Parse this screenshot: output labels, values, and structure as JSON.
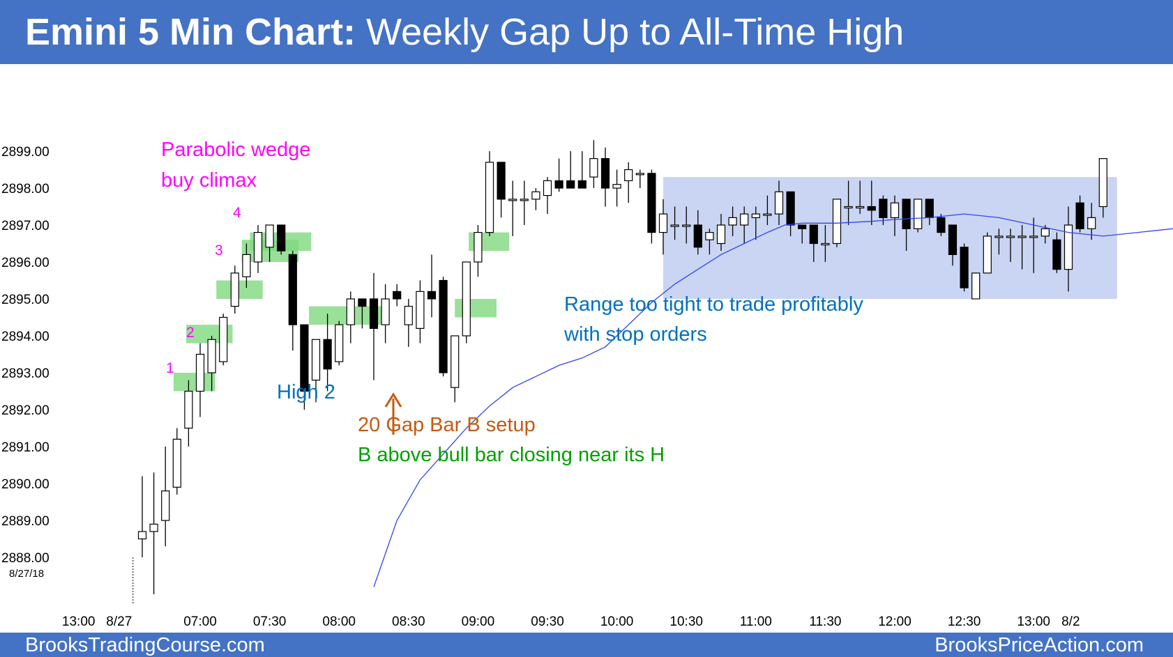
{
  "header": {
    "title_bold": "Emini 5 Min Chart:",
    "title_rest": " Weekly Gap Up to All-Time High",
    "bg_color": "#4472c4"
  },
  "footer": {
    "left": "BrooksTradingCourse.com",
    "right": "BrooksPriceAction.com"
  },
  "chart_data": {
    "type": "candlestick",
    "date_label": "8/27/18",
    "ylim": [
      2887.0,
      2899.5
    ],
    "y_ticks": [
      2899.0,
      2898.0,
      2897.0,
      2896.0,
      2895.0,
      2894.0,
      2893.0,
      2892.0,
      2891.0,
      2890.0,
      2889.0,
      2888.0
    ],
    "y_tick_labels": [
      "2899.00",
      "2898.00",
      "2897.00",
      "2896.00",
      "2895.00",
      "2894.00",
      "2893.00",
      "2892.00",
      "2891.00",
      "2890.00",
      "2889.00",
      "2888.00"
    ],
    "x_tick_labels": [
      {
        "bar": -5.5,
        "label": "13:00"
      },
      {
        "bar": -2.0,
        "label": "8/27"
      },
      {
        "bar": 5,
        "label": "07:00"
      },
      {
        "bar": 11,
        "label": "07:30"
      },
      {
        "bar": 17,
        "label": "08:00"
      },
      {
        "bar": 23,
        "label": "08:30"
      },
      {
        "bar": 29,
        "label": "09:00"
      },
      {
        "bar": 35,
        "label": "09:30"
      },
      {
        "bar": 41,
        "label": "10:00"
      },
      {
        "bar": 47,
        "label": "10:30"
      },
      {
        "bar": 53,
        "label": "11:00"
      },
      {
        "bar": 59,
        "label": "11:30"
      },
      {
        "bar": 65,
        "label": "12:00"
      },
      {
        "bar": 71,
        "label": "12:30"
      },
      {
        "bar": 77,
        "label": "13:00"
      },
      {
        "bar": 80.2,
        "label": "8/2"
      }
    ],
    "bars": [
      {
        "o": 2888.5,
        "h": 2890.2,
        "l": 2888.0,
        "c": 2888.7
      },
      {
        "o": 2888.7,
        "h": 2890.3,
        "l": 2887.0,
        "c": 2888.9
      },
      {
        "o": 2889.0,
        "h": 2891.0,
        "l": 2888.3,
        "c": 2889.8
      },
      {
        "o": 2889.9,
        "h": 2891.5,
        "l": 2889.7,
        "c": 2891.2
      },
      {
        "o": 2891.5,
        "h": 2892.8,
        "l": 2891.0,
        "c": 2892.5
      },
      {
        "o": 2892.5,
        "h": 2893.8,
        "l": 2891.8,
        "c": 2893.5
      },
      {
        "o": 2893.0,
        "h": 2894.0,
        "l": 2892.5,
        "c": 2893.9
      },
      {
        "o": 2893.3,
        "h": 2894.6,
        "l": 2893.2,
        "c": 2894.5
      },
      {
        "o": 2894.8,
        "h": 2895.9,
        "l": 2894.6,
        "c": 2895.7
      },
      {
        "o": 2895.6,
        "h": 2896.5,
        "l": 2895.3,
        "c": 2896.2
      },
      {
        "o": 2896.0,
        "h": 2897.0,
        "l": 2895.7,
        "c": 2896.8
      },
      {
        "o": 2896.4,
        "h": 2897.0,
        "l": 2896.0,
        "c": 2897.0
      },
      {
        "o": 2897.0,
        "h": 2897.0,
        "l": 2896.2,
        "c": 2896.3
      },
      {
        "o": 2896.2,
        "h": 2896.3,
        "l": 2893.6,
        "c": 2894.3
      },
      {
        "o": 2894.3,
        "h": 2894.3,
        "l": 2892.0,
        "c": 2892.5
      },
      {
        "o": 2892.8,
        "h": 2893.9,
        "l": 2892.2,
        "c": 2893.9
      },
      {
        "o": 2893.9,
        "h": 2894.6,
        "l": 2892.5,
        "c": 2893.1
      },
      {
        "o": 2893.3,
        "h": 2894.4,
        "l": 2893.2,
        "c": 2894.3
      },
      {
        "o": 2894.3,
        "h": 2895.2,
        "l": 2893.8,
        "c": 2895.0
      },
      {
        "o": 2895.0,
        "h": 2895.0,
        "l": 2894.2,
        "c": 2894.8
      },
      {
        "o": 2895.0,
        "h": 2895.7,
        "l": 2892.8,
        "c": 2894.2
      },
      {
        "o": 2894.3,
        "h": 2895.4,
        "l": 2893.8,
        "c": 2895.0
      },
      {
        "o": 2895.2,
        "h": 2895.4,
        "l": 2894.8,
        "c": 2895.0
      },
      {
        "o": 2894.3,
        "h": 2895.0,
        "l": 2893.7,
        "c": 2894.8
      },
      {
        "o": 2894.2,
        "h": 2895.5,
        "l": 2893.8,
        "c": 2895.2
      },
      {
        "o": 2895.2,
        "h": 2896.2,
        "l": 2894.5,
        "c": 2895.0
      },
      {
        "o": 2895.5,
        "h": 2895.6,
        "l": 2892.9,
        "c": 2893.0
      },
      {
        "o": 2892.6,
        "h": 2894.0,
        "l": 2892.2,
        "c": 2894.0
      },
      {
        "o": 2894.0,
        "h": 2896.0,
        "l": 2893.8,
        "c": 2896.0
      },
      {
        "o": 2896.0,
        "h": 2897.0,
        "l": 2895.6,
        "c": 2896.8
      },
      {
        "o": 2896.8,
        "h": 2899.0,
        "l": 2896.7,
        "c": 2898.7
      },
      {
        "o": 2898.7,
        "h": 2898.7,
        "l": 2897.2,
        "c": 2897.7
      },
      {
        "o": 2897.7,
        "h": 2898.2,
        "l": 2896.7,
        "c": 2897.7
      },
      {
        "o": 2897.7,
        "h": 2898.2,
        "l": 2897.0,
        "c": 2897.7
      },
      {
        "o": 2897.7,
        "h": 2898.0,
        "l": 2897.4,
        "c": 2897.9
      },
      {
        "o": 2897.8,
        "h": 2898.3,
        "l": 2897.3,
        "c": 2898.2
      },
      {
        "o": 2898.2,
        "h": 2898.8,
        "l": 2897.9,
        "c": 2898.0
      },
      {
        "o": 2898.2,
        "h": 2899.0,
        "l": 2898.0,
        "c": 2898.0
      },
      {
        "o": 2898.2,
        "h": 2899.0,
        "l": 2898.0,
        "c": 2898.0
      },
      {
        "o": 2898.3,
        "h": 2899.3,
        "l": 2898.0,
        "c": 2898.8
      },
      {
        "o": 2898.8,
        "h": 2899.1,
        "l": 2897.5,
        "c": 2898.0
      },
      {
        "o": 2898.0,
        "h": 2898.5,
        "l": 2897.5,
        "c": 2898.1
      },
      {
        "o": 2898.2,
        "h": 2898.7,
        "l": 2897.6,
        "c": 2898.5
      },
      {
        "o": 2898.4,
        "h": 2898.5,
        "l": 2898.0,
        "c": 2898.4
      },
      {
        "o": 2898.4,
        "h": 2898.5,
        "l": 2896.5,
        "c": 2896.8
      },
      {
        "o": 2896.8,
        "h": 2897.7,
        "l": 2896.2,
        "c": 2897.3
      },
      {
        "o": 2897.0,
        "h": 2897.5,
        "l": 2896.6,
        "c": 2897.0
      },
      {
        "o": 2897.0,
        "h": 2897.5,
        "l": 2896.5,
        "c": 2897.0
      },
      {
        "o": 2897.0,
        "h": 2897.4,
        "l": 2896.2,
        "c": 2896.4
      },
      {
        "o": 2896.6,
        "h": 2896.9,
        "l": 2896.2,
        "c": 2896.8
      },
      {
        "o": 2896.5,
        "h": 2897.3,
        "l": 2896.3,
        "c": 2897.0
      },
      {
        "o": 2897.0,
        "h": 2897.5,
        "l": 2896.7,
        "c": 2897.2
      },
      {
        "o": 2897.0,
        "h": 2897.5,
        "l": 2896.5,
        "c": 2897.3
      },
      {
        "o": 2897.2,
        "h": 2897.5,
        "l": 2896.6,
        "c": 2897.3
      },
      {
        "o": 2897.3,
        "h": 2897.8,
        "l": 2897.0,
        "c": 2897.3
      },
      {
        "o": 2897.3,
        "h": 2898.2,
        "l": 2897.0,
        "c": 2897.9
      },
      {
        "o": 2897.9,
        "h": 2897.9,
        "l": 2896.7,
        "c": 2897.0
      },
      {
        "o": 2897.0,
        "h": 2897.0,
        "l": 2896.5,
        "c": 2896.9
      },
      {
        "o": 2897.0,
        "h": 2897.0,
        "l": 2896.0,
        "c": 2896.5
      },
      {
        "o": 2896.5,
        "h": 2897.0,
        "l": 2896.0,
        "c": 2896.5
      },
      {
        "o": 2896.5,
        "h": 2897.7,
        "l": 2896.4,
        "c": 2897.7
      },
      {
        "o": 2897.5,
        "h": 2898.2,
        "l": 2897.0,
        "c": 2897.5
      },
      {
        "o": 2897.5,
        "h": 2898.2,
        "l": 2897.3,
        "c": 2897.5
      },
      {
        "o": 2897.5,
        "h": 2898.2,
        "l": 2897.0,
        "c": 2897.4
      },
      {
        "o": 2897.7,
        "h": 2897.8,
        "l": 2897.0,
        "c": 2897.2
      },
      {
        "o": 2897.2,
        "h": 2897.8,
        "l": 2896.7,
        "c": 2897.6
      },
      {
        "o": 2897.7,
        "h": 2897.7,
        "l": 2896.3,
        "c": 2896.9
      },
      {
        "o": 2896.9,
        "h": 2897.7,
        "l": 2896.8,
        "c": 2897.7
      },
      {
        "o": 2897.7,
        "h": 2897.7,
        "l": 2897.0,
        "c": 2897.2
      },
      {
        "o": 2897.2,
        "h": 2897.3,
        "l": 2896.7,
        "c": 2896.8
      },
      {
        "o": 2897.0,
        "h": 2897.0,
        "l": 2895.9,
        "c": 2896.2
      },
      {
        "o": 2896.4,
        "h": 2896.5,
        "l": 2895.2,
        "c": 2895.3
      },
      {
        "o": 2895.0,
        "h": 2895.7,
        "l": 2895.0,
        "c": 2895.7
      },
      {
        "o": 2895.7,
        "h": 2896.8,
        "l": 2895.7,
        "c": 2896.7
      },
      {
        "o": 2896.7,
        "h": 2896.9,
        "l": 2896.2,
        "c": 2896.7
      },
      {
        "o": 2896.7,
        "h": 2896.9,
        "l": 2896.0,
        "c": 2896.7
      },
      {
        "o": 2896.7,
        "h": 2897.0,
        "l": 2895.8,
        "c": 2896.7
      },
      {
        "o": 2896.7,
        "h": 2897.2,
        "l": 2895.7,
        "c": 2896.7
      },
      {
        "o": 2896.7,
        "h": 2897.0,
        "l": 2896.5,
        "c": 2896.9
      },
      {
        "o": 2896.6,
        "h": 2896.8,
        "l": 2895.7,
        "c": 2895.8
      },
      {
        "o": 2895.8,
        "h": 2897.5,
        "l": 2895.2,
        "c": 2897.0
      },
      {
        "o": 2897.6,
        "h": 2897.8,
        "l": 2896.8,
        "c": 2896.9
      },
      {
        "o": 2896.9,
        "h": 2897.6,
        "l": 2896.6,
        "c": 2897.2
      },
      {
        "o": 2897.5,
        "h": 2898.8,
        "l": 2897.2,
        "c": 2898.8
      }
    ],
    "ema_line": [
      [
        20.0,
        2887.2
      ],
      [
        22.0,
        2889.0
      ],
      [
        24.0,
        2890.1
      ],
      [
        26.0,
        2890.8
      ],
      [
        28.0,
        2891.5
      ],
      [
        30.0,
        2892.1
      ],
      [
        32.0,
        2892.6
      ],
      [
        34.0,
        2892.9
      ],
      [
        36.0,
        2893.2
      ],
      [
        38.0,
        2893.4
      ],
      [
        40.0,
        2893.7
      ],
      [
        42.0,
        2894.3
      ],
      [
        44.0,
        2894.9
      ],
      [
        46.0,
        2895.4
      ],
      [
        48.0,
        2895.8
      ],
      [
        50.0,
        2896.2
      ],
      [
        52.0,
        2896.5
      ],
      [
        54.0,
        2896.8
      ],
      [
        55.5,
        2897.0
      ],
      [
        57.0,
        2897.05
      ],
      [
        60.0,
        2897.05
      ],
      [
        63.0,
        2897.1
      ],
      [
        65.0,
        2897.15
      ],
      [
        68.0,
        2897.2
      ],
      [
        71.0,
        2897.3
      ],
      [
        74.0,
        2897.2
      ],
      [
        77.0,
        2897.0
      ],
      [
        80.0,
        2896.8
      ],
      [
        83.0,
        2896.7
      ],
      [
        86.0,
        2896.8
      ],
      [
        89.0,
        2896.9
      ],
      [
        93.0,
        2896.9
      ],
      [
        96.0,
        2896.8
      ],
      [
        98.0,
        2896.85
      ],
      [
        100.0,
        2896.9
      ],
      [
        101.5,
        2897.1
      ]
    ],
    "range_box": {
      "bar_start": 45.0,
      "bar_end": 84.2,
      "top": 2898.3,
      "bottom": 2895.0
    },
    "green_boxes": [
      {
        "bar_start": 2.7,
        "bar_end": 6.3,
        "top": 2893.0,
        "bottom": 2892.5
      },
      {
        "bar_start": 3.8,
        "bar_end": 7.8,
        "top": 2894.3,
        "bottom": 2893.8
      },
      {
        "bar_start": 6.4,
        "bar_end": 10.4,
        "top": 2895.5,
        "bottom": 2895.0
      },
      {
        "bar_start": 8.6,
        "bar_end": 13.5,
        "top": 2896.6,
        "bottom": 2896.0
      },
      {
        "bar_start": 9.3,
        "bar_end": 14.6,
        "top": 2896.8,
        "bottom": 2896.3
      },
      {
        "bar_start": 14.4,
        "bar_end": 20.8,
        "top": 2894.8,
        "bottom": 2894.3
      },
      {
        "bar_start": 27.0,
        "bar_end": 30.6,
        "top": 2895.0,
        "bottom": 2894.5
      },
      {
        "bar_start": 28.2,
        "bar_end": 31.7,
        "top": 2896.8,
        "bottom": 2896.3
      }
    ],
    "annotations": {
      "wedge_1": "Parabolic wedge",
      "wedge_2": "buy climax",
      "n1": "1",
      "n2": "2",
      "n3": "3",
      "n4": "4",
      "high2": "High 2",
      "gap_1": "20 Gap Bar B setup",
      "gap_2": "B above bull bar closing near its H",
      "range_1": "Range too tight to trade profitably",
      "range_2": "with stop orders"
    },
    "colors": {
      "magenta": "#ff00ff",
      "blue_text": "#0070c0",
      "orange": "#c55a11",
      "green_text": "#00a000",
      "range_fill": "#c9d5f2",
      "green_fill": "#7fd87f",
      "ema": "#3344ee"
    }
  }
}
